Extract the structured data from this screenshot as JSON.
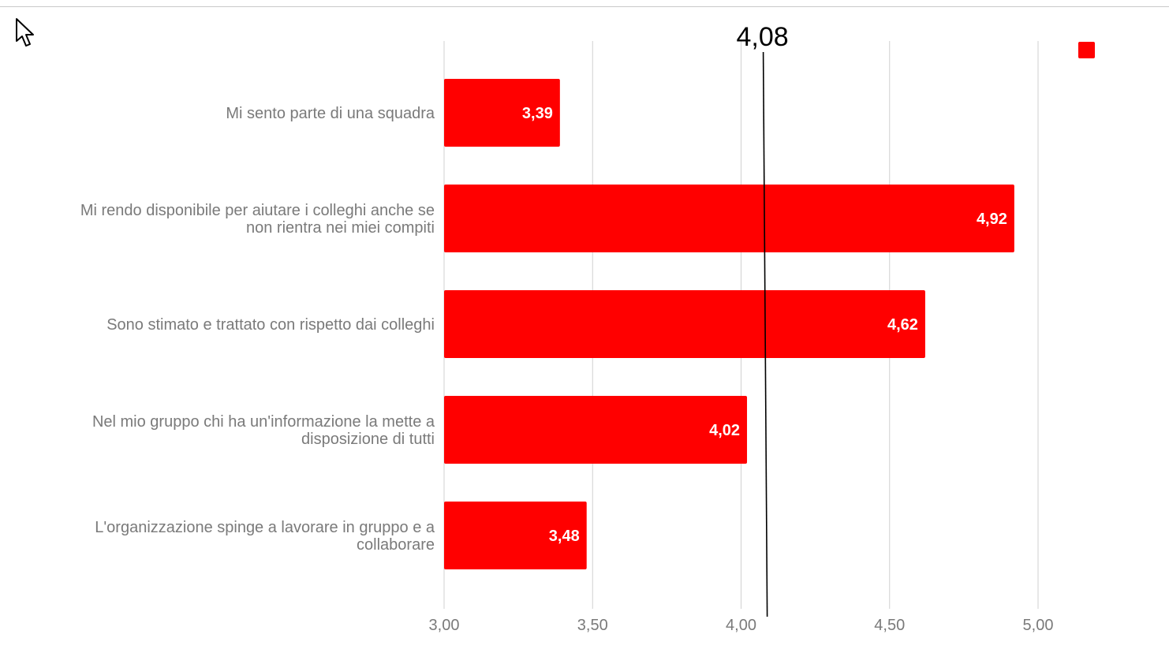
{
  "chart_data": {
    "type": "bar",
    "orientation": "horizontal",
    "categories": [
      "Mi sento parte di una squadra",
      "Mi rendo disponibile per aiutare i colleghi anche se non rientra nei miei compiti",
      "Sono stimato e trattato con rispetto dai colleghi",
      "Nel mio gruppo chi ha un'informazione la mette a disposizione di tutti",
      "L'organizzazione spinge a lavorare in gruppo e a collaborare"
    ],
    "category_lines": [
      [
        "Mi sento parte di una squadra"
      ],
      [
        "Mi rendo disponibile per aiutare i colleghi anche se",
        "non rientra nei miei compiti"
      ],
      [
        "Sono stimato e trattato con rispetto dai colleghi"
      ],
      [
        "Nel mio gruppo chi ha un'informazione la mette a",
        "disposizione di tutti"
      ],
      [
        "L'organizzazione spinge a lavorare in gruppo e a",
        "collaborare"
      ]
    ],
    "values": [
      3.39,
      4.92,
      4.62,
      4.02,
      3.48
    ],
    "value_labels": [
      "3,39",
      "4,92",
      "4,62",
      "4,02",
      "3,48"
    ],
    "xlim": [
      3.0,
      5.0
    ],
    "xticks": [
      3.0,
      3.5,
      4.0,
      4.5,
      5.0
    ],
    "xtick_labels": [
      "3,00",
      "3,50",
      "4,00",
      "4,50",
      "5,00"
    ],
    "reference_line": {
      "value": 4.08,
      "label": "4,08"
    },
    "bar_color": "#ff0000",
    "grid": true,
    "legend": "top-right",
    "title": "",
    "xlabel": "",
    "ylabel": ""
  },
  "colors": {
    "bar": "#ff0000",
    "grid": "#d0d0d0",
    "axis_text": "#7a7a7a",
    "value_label": "#ffffff",
    "reference": "#000000"
  },
  "icons": {
    "cursor": "mouse-pointer-icon"
  }
}
